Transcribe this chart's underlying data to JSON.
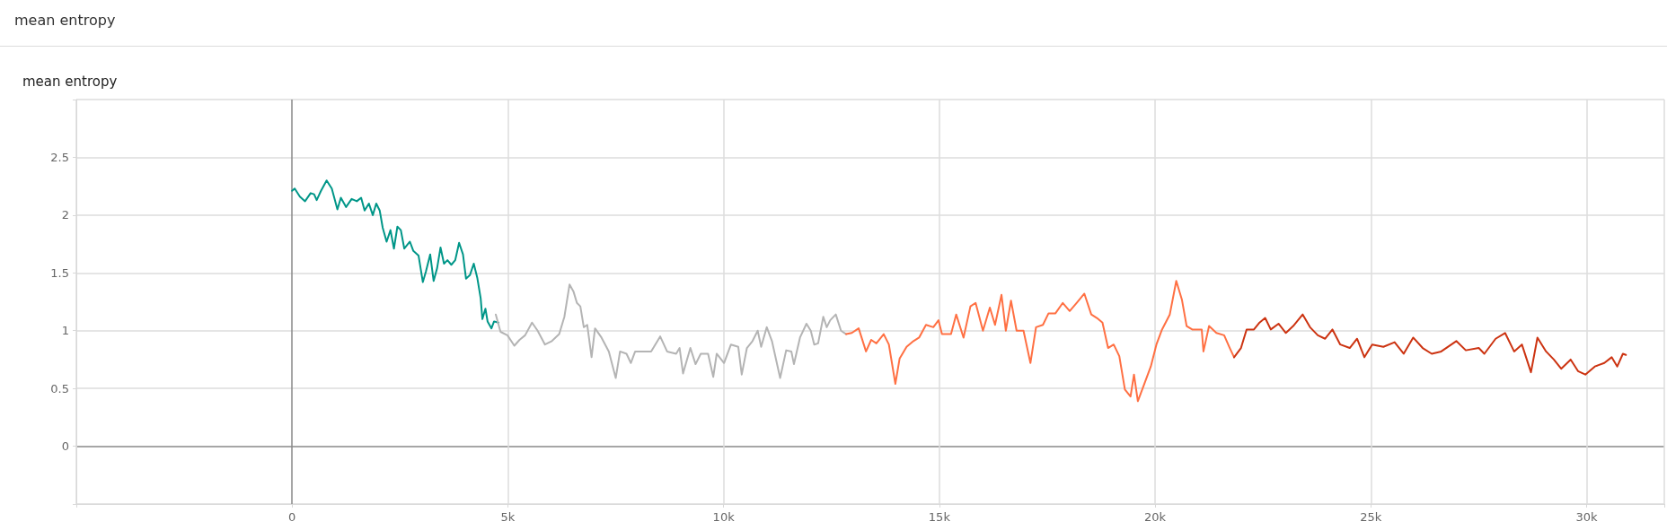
{
  "chart_data": {
    "type": "line",
    "title": "mean entropy",
    "subtitle": "mean entropy",
    "xlim": [
      -5000,
      31800
    ],
    "ylim": [
      -0.5,
      3
    ],
    "xticks": [
      {
        "value": -5000,
        "label": null
      },
      0,
      {
        "value": 5000,
        "label": "5k"
      },
      {
        "value": 10000,
        "label": "10k"
      },
      {
        "value": 15000,
        "label": "15k"
      },
      {
        "value": 20000,
        "label": "20k"
      },
      {
        "value": 25000,
        "label": "25k"
      },
      {
        "value": 30000,
        "label": "30k"
      }
    ],
    "yticks": [
      {
        "value": -0.5,
        "label": null
      },
      0,
      0.5,
      1,
      1.5,
      2,
      2.5,
      {
        "value": 3,
        "label": null
      }
    ],
    "grid": true,
    "marker": "none",
    "line_style": "solid",
    "series": [
      {
        "color": "#009688",
        "x": [
          0,
          60,
          180,
          300,
          430,
          510,
          570,
          670,
          800,
          920,
          1050,
          1130,
          1250,
          1380,
          1500,
          1600,
          1680,
          1780,
          1870,
          1950,
          2030,
          2100,
          2190,
          2280,
          2360,
          2440,
          2520,
          2600,
          2730,
          2810,
          2930,
          3030,
          3100,
          3200,
          3280,
          3360,
          3440,
          3520,
          3600,
          3690,
          3780,
          3870,
          3960,
          4030,
          4120,
          4210,
          4290,
          4370,
          4410,
          4480,
          4530,
          4620,
          4680,
          4780
        ],
        "values": [
          2.21,
          2.23,
          2.16,
          2.12,
          2.19,
          2.18,
          2.13,
          2.21,
          2.3,
          2.23,
          2.05,
          2.15,
          2.07,
          2.14,
          2.12,
          2.15,
          2.04,
          2.1,
          2.0,
          2.1,
          2.04,
          1.89,
          1.77,
          1.87,
          1.71,
          1.9,
          1.87,
          1.71,
          1.77,
          1.69,
          1.65,
          1.42,
          1.51,
          1.66,
          1.43,
          1.54,
          1.72,
          1.58,
          1.61,
          1.57,
          1.61,
          1.76,
          1.66,
          1.45,
          1.48,
          1.58,
          1.46,
          1.28,
          1.1,
          1.19,
          1.08,
          1.02,
          1.08,
          1.07
        ]
      },
      {
        "color": "#b4b4b4",
        "x": [
          4720,
          4830,
          4990,
          5150,
          5270,
          5400,
          5560,
          5690,
          5860,
          6020,
          6190,
          6310,
          6430,
          6520,
          6600,
          6680,
          6760,
          6840,
          6940,
          7020,
          7170,
          7340,
          7500,
          7600,
          7750,
          7850,
          7950,
          8160,
          8320,
          8530,
          8690,
          8900,
          8980,
          9060,
          9230,
          9350,
          9470,
          9640,
          9760,
          9840,
          10010,
          10170,
          10340,
          10420,
          10540,
          10670,
          10790,
          10870,
          11000,
          11120,
          11310,
          11450,
          11570,
          11630,
          11770,
          11920,
          12020,
          12100,
          12190,
          12310,
          12390,
          12470,
          12600,
          12720,
          12840
        ],
        "values": [
          1.14,
          0.99,
          0.96,
          0.87,
          0.92,
          0.96,
          1.07,
          1.0,
          0.88,
          0.91,
          0.97,
          1.12,
          1.4,
          1.34,
          1.24,
          1.21,
          1.03,
          1.05,
          0.77,
          1.02,
          0.94,
          0.82,
          0.59,
          0.82,
          0.8,
          0.72,
          0.82,
          0.82,
          0.82,
          0.95,
          0.82,
          0.8,
          0.85,
          0.63,
          0.85,
          0.71,
          0.8,
          0.8,
          0.6,
          0.8,
          0.72,
          0.88,
          0.86,
          0.62,
          0.85,
          0.91,
          1.0,
          0.86,
          1.03,
          0.91,
          0.59,
          0.83,
          0.82,
          0.71,
          0.94,
          1.06,
          1.0,
          0.88,
          0.89,
          1.12,
          1.03,
          1.09,
          1.14,
          1.0,
          0.97
        ]
      },
      {
        "color": "#ff7043",
        "x": [
          12840,
          12970,
          13130,
          13300,
          13420,
          13540,
          13710,
          13830,
          13980,
          14080,
          14240,
          14400,
          14530,
          14690,
          14860,
          14980,
          15060,
          15270,
          15390,
          15560,
          15720,
          15840,
          16010,
          16170,
          16290,
          16440,
          16540,
          16660,
          16790,
          16950,
          17110,
          17240,
          17400,
          17530,
          17690,
          17860,
          18020,
          18180,
          18360,
          18520,
          18650,
          18780,
          18910,
          19040,
          19170,
          19300,
          19430,
          19510,
          19600,
          19730,
          19900,
          20030,
          20160,
          20340,
          20490,
          20620,
          20730,
          20860,
          21080,
          21120,
          21250,
          21420,
          21600,
          21730,
          21830
        ],
        "values": [
          0.97,
          0.98,
          1.02,
          0.82,
          0.92,
          0.89,
          0.97,
          0.88,
          0.54,
          0.76,
          0.86,
          0.91,
          0.94,
          1.05,
          1.03,
          1.09,
          0.97,
          0.97,
          1.14,
          0.94,
          1.21,
          1.24,
          1.0,
          1.2,
          1.05,
          1.31,
          1.0,
          1.26,
          1.0,
          1.0,
          0.72,
          1.03,
          1.05,
          1.15,
          1.15,
          1.24,
          1.17,
          1.24,
          1.32,
          1.14,
          1.11,
          1.07,
          0.85,
          0.88,
          0.78,
          0.49,
          0.43,
          0.62,
          0.39,
          0.52,
          0.69,
          0.88,
          1.01,
          1.14,
          1.43,
          1.27,
          1.04,
          1.01,
          1.01,
          0.82,
          1.04,
          0.98,
          0.96,
          0.85,
          0.77
        ]
      },
      {
        "color": "#cc3311",
        "x": [
          21830,
          21990,
          22120,
          22290,
          22420,
          22550,
          22680,
          22860,
          23030,
          23200,
          23420,
          23590,
          23770,
          23940,
          24110,
          24290,
          24510,
          24680,
          24850,
          25030,
          25290,
          25550,
          25760,
          25980,
          26200,
          26410,
          26630,
          26980,
          27200,
          27500,
          27630,
          27890,
          28110,
          28320,
          28500,
          28710,
          28860,
          29060,
          29240,
          29410,
          29630,
          29800,
          29970,
          30190,
          30410,
          30580,
          30710,
          30840,
          30910
        ],
        "values": [
          0.77,
          0.85,
          1.01,
          1.01,
          1.07,
          1.11,
          1.01,
          1.06,
          0.98,
          1.04,
          1.14,
          1.03,
          0.96,
          0.93,
          1.01,
          0.88,
          0.85,
          0.93,
          0.77,
          0.88,
          0.86,
          0.9,
          0.8,
          0.94,
          0.85,
          0.8,
          0.82,
          0.91,
          0.83,
          0.85,
          0.8,
          0.93,
          0.98,
          0.82,
          0.88,
          0.64,
          0.94,
          0.82,
          0.75,
          0.67,
          0.75,
          0.65,
          0.62,
          0.69,
          0.72,
          0.77,
          0.69,
          0.8,
          0.79
        ]
      }
    ]
  }
}
